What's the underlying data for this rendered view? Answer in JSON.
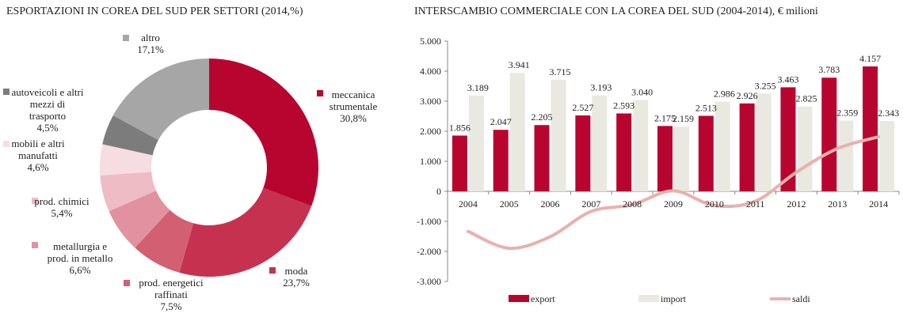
{
  "chart_data": [
    {
      "type": "pie",
      "title": "ESPORTAZIONI IN COREA DEL SUD PER SETTORI (2014,%)",
      "slices": [
        {
          "name": "meccanica strumentale",
          "label_lines": [
            "meccanica",
            "strumentale"
          ],
          "value_label": "30,8%",
          "value": 30.8,
          "color": "#b8052f"
        },
        {
          "name": "moda",
          "label_lines": [
            "moda"
          ],
          "value_label": "23,7%",
          "value": 23.7,
          "color": "#c63150"
        },
        {
          "name": "prod. energetici raffinati",
          "label_lines": [
            "prod. energetici",
            "raffinati"
          ],
          "value_label": "7,5%",
          "value": 7.5,
          "color": "#d35f73"
        },
        {
          "name": "metallurgia e prod. in metallo",
          "label_lines": [
            "metallurgia e",
            "prod. in metallo"
          ],
          "value_label": "6,6%",
          "value": 6.6,
          "color": "#e1919f"
        },
        {
          "name": "prod. chimici",
          "label_lines": [
            "prod. chimici"
          ],
          "value_label": "5,4%",
          "value": 5.4,
          "color": "#eebcc4"
        },
        {
          "name": "mobili e altri manufatti",
          "label_lines": [
            "mobili e altri",
            "manufatti"
          ],
          "value_label": "4,6%",
          "value": 4.6,
          "color": "#f6dde1"
        },
        {
          "name": "autoveicoli e altri mezzi di trasporto",
          "label_lines": [
            "autoveicoli e altri",
            "mezzi di",
            "trasporto"
          ],
          "value_label": "4,5%",
          "value": 4.5,
          "color": "#7c7c7c"
        },
        {
          "name": "altro",
          "label_lines": [
            "altro"
          ],
          "value_label": "17,1%",
          "value": 17.1,
          "color": "#a6a6a6"
        }
      ]
    },
    {
      "type": "bar",
      "title": "INTERSCAMBIO COMMERCIALE CON LA COREA DEL SUD (2004-2014), € milioni",
      "categories": [
        "2004",
        "2005",
        "2006",
        "2007",
        "2008",
        "2009",
        "2010",
        "2011",
        "2012",
        "2013",
        "2014"
      ],
      "ylim": [
        -3000,
        5000
      ],
      "yticks": [
        5000,
        4000,
        3000,
        2000,
        1000,
        0,
        -1000,
        -2000,
        -3000
      ],
      "ytick_labels": [
        "5.000",
        "4.000",
        "3.000",
        "2.000",
        "1.000",
        "0",
        "-1.000",
        "-2.000",
        "-3.000"
      ],
      "series": [
        {
          "name": "export",
          "kind": "bar",
          "color": "#b8052f",
          "values": [
            1856,
            2047,
            2205,
            2527,
            2593,
            2175,
            2513,
            2926,
            3463,
            3783,
            4157
          ],
          "labels": [
            "1.856",
            "2.047",
            "2.205",
            "2.527",
            "2.593",
            "2.175",
            "2.513",
            "2.926",
            "3.463",
            "3.783",
            "4.157"
          ]
        },
        {
          "name": "import",
          "kind": "bar",
          "color": "#e9e9e1",
          "values": [
            3189,
            3941,
            3715,
            3193,
            3040,
            2159,
            2986,
            3255,
            2825,
            2359,
            2343
          ],
          "labels": [
            "3.189",
            "3.941",
            "3.715",
            "3.193",
            "3.040",
            "2.159",
            "2.986",
            "3.255",
            "2.825",
            "2.359",
            "2.343"
          ]
        },
        {
          "name": "saldi",
          "kind": "line",
          "color": "#e8b1ad",
          "values": [
            -1333,
            -1894,
            -1510,
            -666,
            -447,
            16,
            -473,
            -329,
            638,
            1424,
            1814
          ]
        }
      ],
      "grid": false,
      "legend": "bottom"
    }
  ]
}
